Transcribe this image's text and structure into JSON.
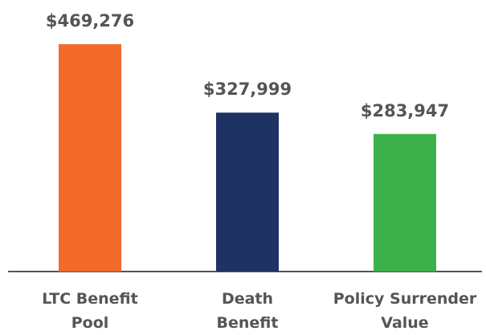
{
  "chart_data": {
    "type": "bar",
    "categories": [
      "LTC Benefit Pool",
      "Death Benefit",
      "Policy Surrender Value"
    ],
    "values": [
      469276,
      327999,
      283947
    ],
    "value_labels": [
      "$469,276",
      "$327,999",
      "$283,947"
    ],
    "colors": [
      "#f26b2a",
      "#1f3264",
      "#3cb14a"
    ]
  }
}
